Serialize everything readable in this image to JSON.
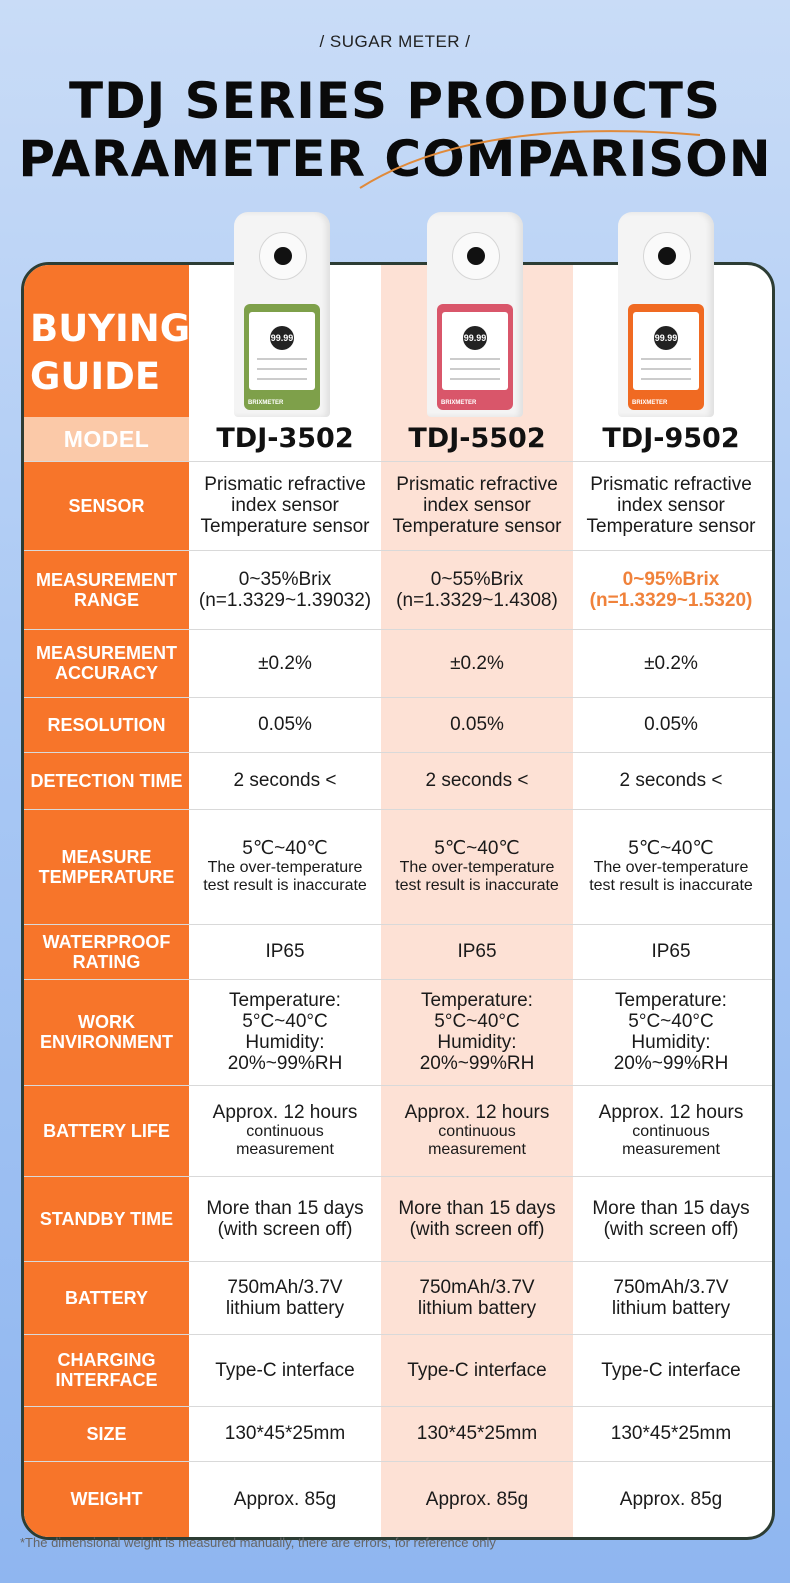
{
  "header": {
    "tag": "/ SUGAR METER /",
    "title_line1": "TDJ SERIES PRODUCTS",
    "title_line2": "PARAMETER COMPARISON"
  },
  "guide": {
    "buying_line1": "BUYING",
    "buying_line2": "GUIDE",
    "model_label": "MODEL"
  },
  "devices": [
    {
      "model": "TDJ-3502",
      "screen_color": "#7ea04a",
      "reading": "99.99",
      "brand": "BRIXMETER"
    },
    {
      "model": "TDJ-5502",
      "screen_color": "#d9566a",
      "reading": "99.99",
      "brand": "BRIXMETER"
    },
    {
      "model": "TDJ-9502",
      "screen_color": "#f06a22",
      "reading": "99.99",
      "brand": "BRIXMETER"
    }
  ],
  "rows": [
    {
      "label": "SENSOR",
      "cells": [
        [
          "Prismatic refractive",
          "index sensor",
          "Temperature sensor"
        ],
        [
          "Prismatic refractive",
          "index sensor",
          "Temperature sensor"
        ],
        [
          "Prismatic refractive",
          "index sensor",
          "Temperature sensor"
        ]
      ]
    },
    {
      "label": "MEASUREMENT RANGE",
      "cells": [
        [
          "0~35%Brix",
          "(n=1.3329~1.39032)"
        ],
        [
          "0~55%Brix",
          "(n=1.3329~1.4308)"
        ],
        [
          "0~95%Brix",
          "(n=1.3329~1.5320)"
        ]
      ]
    },
    {
      "label": "MEASUREMENT ACCURACY",
      "cells": [
        [
          "±0.2%"
        ],
        [
          "±0.2%"
        ],
        [
          "±0.2%"
        ]
      ]
    },
    {
      "label": "RESOLUTION",
      "cells": [
        [
          "0.05%"
        ],
        [
          "0.05%"
        ],
        [
          "0.05%"
        ]
      ]
    },
    {
      "label": "DETECTION TIME",
      "cells": [
        [
          "2 seconds <"
        ],
        [
          "2 seconds <"
        ],
        [
          "2 seconds <"
        ]
      ]
    },
    {
      "label": "MEASURE TEMPERATURE",
      "cells": [
        [
          "5℃~40℃",
          "The over-temperature",
          "test result is inaccurate"
        ],
        [
          "5℃~40℃",
          "The over-temperature",
          "test result is inaccurate"
        ],
        [
          "5℃~40℃",
          "The over-temperature",
          "test result is inaccurate"
        ]
      ]
    },
    {
      "label": "WATERPROOF RATING",
      "cells": [
        [
          "IP65"
        ],
        [
          "IP65"
        ],
        [
          "IP65"
        ]
      ]
    },
    {
      "label": "WORK ENVIRONMENT",
      "cells": [
        [
          "Temperature:",
          "5°C~40°C",
          "Humidity:",
          "20%~99%RH"
        ],
        [
          "Temperature:",
          "5°C~40°C",
          "Humidity:",
          "20%~99%RH"
        ],
        [
          "Temperature:",
          "5°C~40°C",
          "Humidity:",
          "20%~99%RH"
        ]
      ]
    },
    {
      "label": "BATTERY LIFE",
      "cells": [
        [
          "Approx. 12 hours",
          "continuous",
          "measurement"
        ],
        [
          "Approx. 12 hours",
          "continuous",
          "measurement"
        ],
        [
          "Approx. 12 hours",
          "continuous",
          "measurement"
        ]
      ]
    },
    {
      "label": "STANDBY TIME",
      "cells": [
        [
          "More than 15 days",
          "(with screen off)"
        ],
        [
          "More than 15 days",
          "(with screen off)"
        ],
        [
          "More than 15 days",
          "(with screen off)"
        ]
      ]
    },
    {
      "label": "BATTERY",
      "cells": [
        [
          "750mAh/3.7V",
          "lithium battery"
        ],
        [
          "750mAh/3.7V",
          "lithium battery"
        ],
        [
          "750mAh/3.7V",
          "lithium battery"
        ]
      ]
    },
    {
      "label": "CHARGING INTERFACE",
      "cells": [
        [
          "Type-C interface"
        ],
        [
          "Type-C interface"
        ],
        [
          "Type-C interface"
        ]
      ]
    },
    {
      "label": "SIZE",
      "cells": [
        [
          "130*45*25mm"
        ],
        [
          "130*45*25mm"
        ],
        [
          "130*45*25mm"
        ]
      ]
    },
    {
      "label": "WEIGHT",
      "cells": [
        [
          "Approx. 85g"
        ],
        [
          "Approx. 85g"
        ],
        [
          "Approx. 85g"
        ]
      ]
    }
  ],
  "footnote": "*The dimensional weight is measured manually, there are errors, for reference only"
}
